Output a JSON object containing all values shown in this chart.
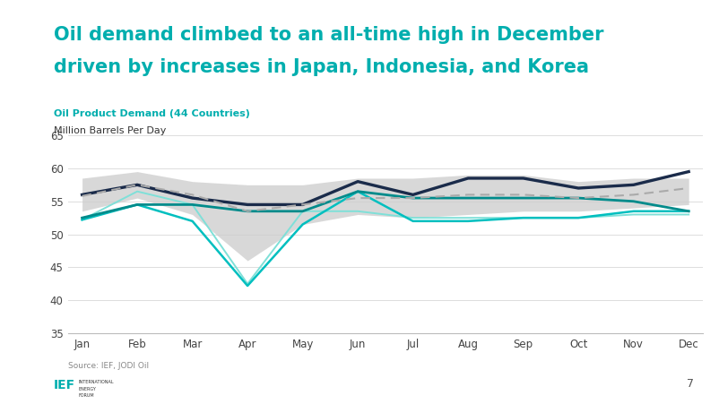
{
  "title_line1": "Oil demand climbed to an all-time high in December",
  "title_line2": "driven by increases in Japan, Indonesia, and Korea",
  "title_color": "#00AEAE",
  "subtitle": "Oil Product Demand (44 Countries)",
  "subtitle_color": "#00AEAE",
  "ylabel": "Million Barrels Per Day",
  "source": "Source: IEF, JODI Oil",
  "ylim": [
    35,
    65
  ],
  "yticks": [
    35,
    40,
    45,
    50,
    55,
    60,
    65
  ],
  "months": [
    "Jan",
    "Feb",
    "Mar",
    "Apr",
    "May",
    "Jun",
    "Jul",
    "Aug",
    "Sep",
    "Oct",
    "Nov",
    "Dec"
  ],
  "range_min": [
    53.5,
    55.5,
    53.0,
    46.0,
    51.5,
    53.0,
    52.5,
    53.0,
    53.5,
    53.5,
    54.0,
    54.5
  ],
  "range_max": [
    58.5,
    59.5,
    58.0,
    57.5,
    57.5,
    58.5,
    58.5,
    59.0,
    59.0,
    58.0,
    58.5,
    58.5
  ],
  "avg_2017_2021": [
    55.8,
    57.5,
    56.0,
    53.5,
    54.5,
    55.5,
    55.5,
    56.0,
    56.0,
    55.5,
    56.0,
    57.0
  ],
  "line_2019": [
    52.2,
    56.5,
    54.5,
    42.5,
    53.5,
    53.5,
    52.5,
    52.5,
    52.5,
    52.5,
    53.0,
    53.0
  ],
  "line_2020": [
    52.2,
    54.5,
    52.0,
    42.2,
    51.5,
    56.5,
    52.0,
    52.0,
    52.5,
    52.5,
    53.5,
    53.5
  ],
  "line_2021": [
    52.5,
    54.5,
    54.5,
    53.5,
    53.5,
    56.5,
    55.5,
    55.5,
    55.5,
    55.5,
    55.0,
    53.5
  ],
  "line_2022": [
    56.0,
    57.5,
    55.5,
    54.5,
    54.5,
    58.0,
    56.0,
    58.5,
    58.5,
    57.0,
    57.5,
    59.5
  ],
  "color_2019": "#7FE0D8",
  "color_2020": "#00BFBF",
  "color_2021": "#008B8B",
  "color_2022": "#1A2B4A",
  "color_avg": "#AAAAAA",
  "color_range": "#CCCCCC",
  "bg_color": "#FFFFFF",
  "grid_color": "#DDDDDD"
}
